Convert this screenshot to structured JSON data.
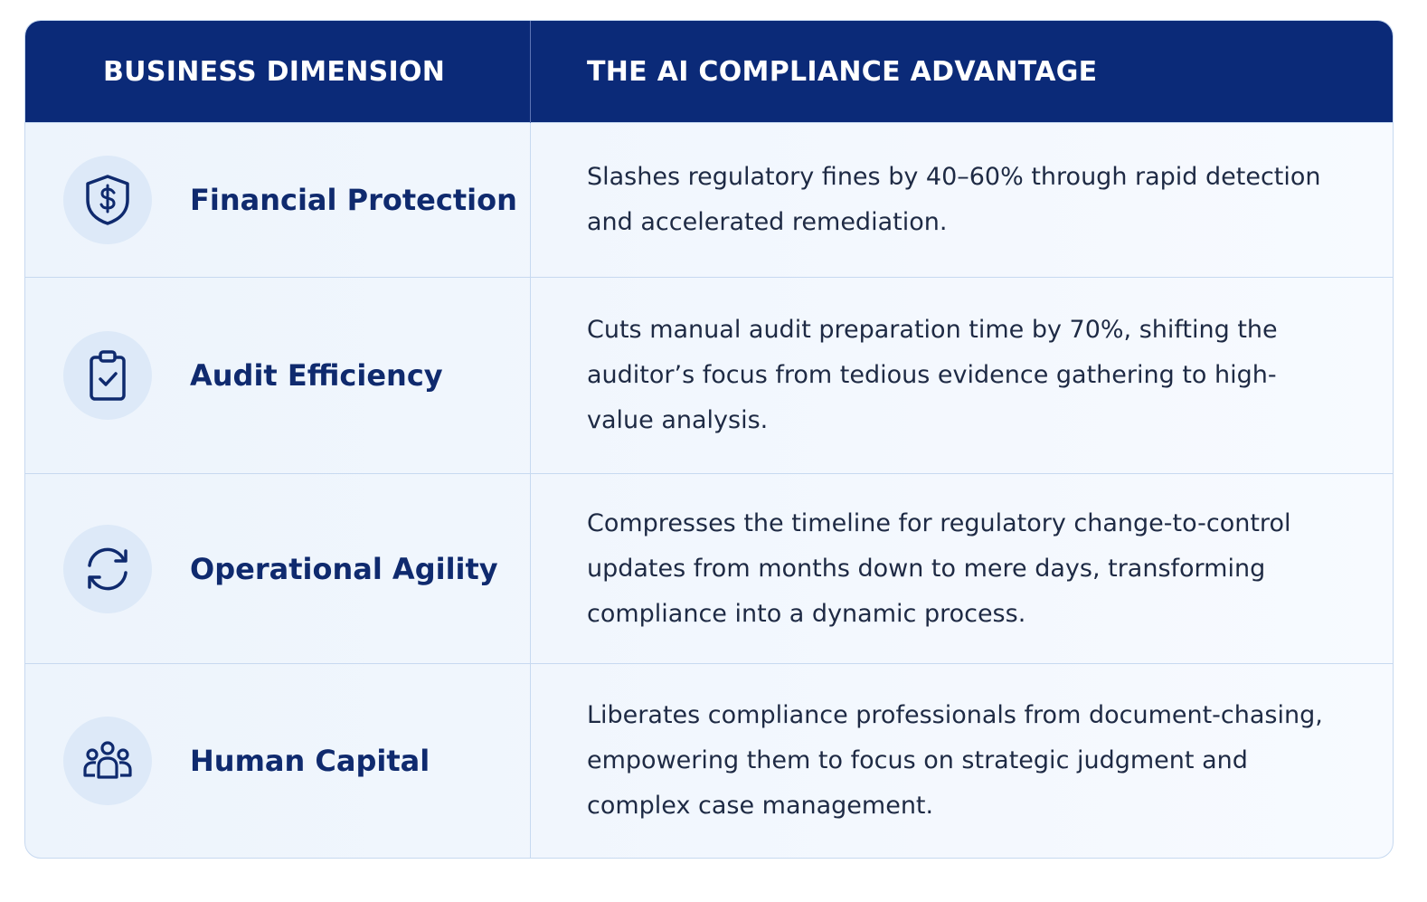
{
  "table": {
    "header": [
      "BUSINESS DIMENSION",
      "THE AI COMPLIANCE ADVANTAGE"
    ],
    "rows": [
      [
        "Financial Protection",
        "Slashes regulatory fines by 40–60% through rapid detection and accelerated remediation."
      ],
      [
        "Audit Efficiency",
        "Cuts manual audit preparation time by 70%, shifting the auditor’s focus from tedious evidence gathering to high-value analysis."
      ],
      [
        "Operational Agility",
        "Compresses the timeline for regulatory change-to-control updates from months down to mere days, transforming compliance into a dynamic process."
      ],
      [
        "Human Capital",
        "Liberates compliance professionals from document-chasing, empowering them to focus on strategic judgment and complex case management."
      ]
    ]
  }
}
